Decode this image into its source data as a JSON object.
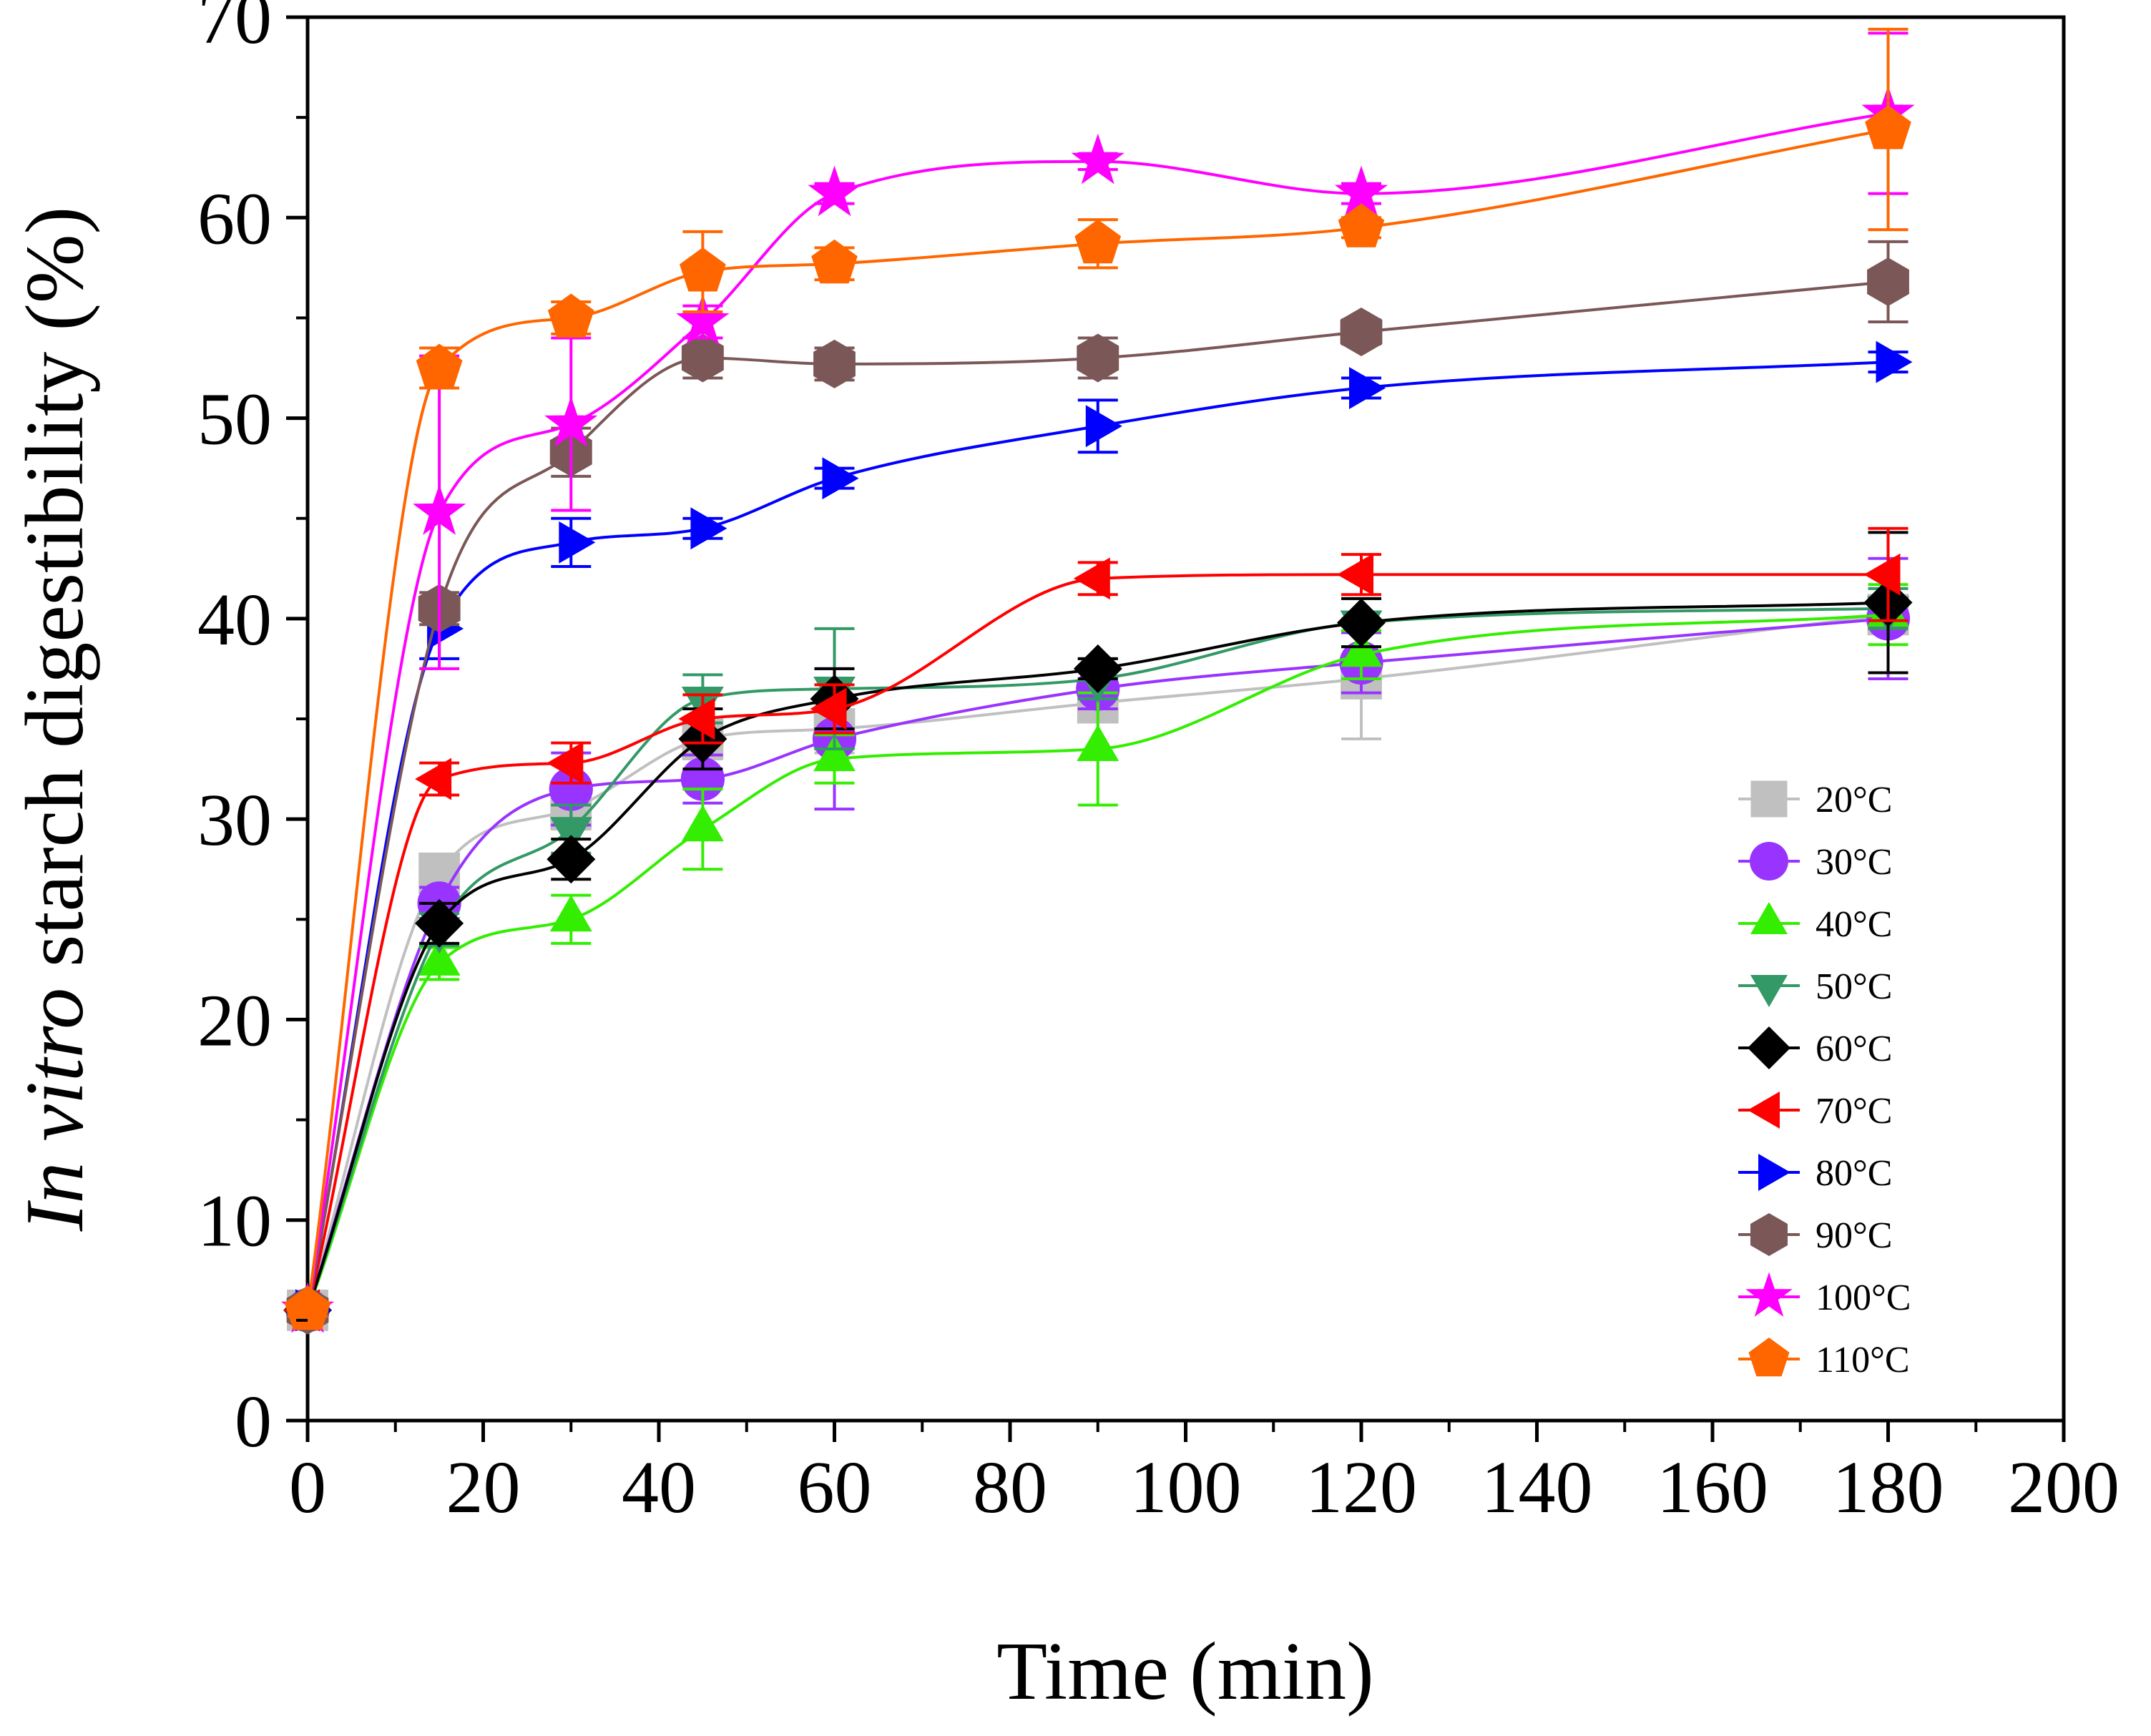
{
  "chart_data": {
    "type": "line",
    "xlabel": "Time (min)",
    "ylabel_italic": "In vitro",
    "ylabel_rest": " starch digestibility (%)",
    "xlim": [
      0,
      200
    ],
    "ylim": [
      0,
      70
    ],
    "xticks": [
      0,
      20,
      40,
      60,
      80,
      100,
      120,
      140,
      160,
      180,
      200
    ],
    "yticks": [
      0,
      10,
      20,
      30,
      40,
      50,
      60,
      70
    ],
    "grid": false,
    "legend_position": "bottom-right",
    "x": [
      0,
      15,
      30,
      45,
      60,
      90,
      120,
      180
    ],
    "series": [
      {
        "name": "20°C",
        "marker": "square",
        "color": "#c0c0c0",
        "values": [
          5.5,
          27.3,
          30.5,
          34.0,
          34.5,
          35.8,
          37.0,
          40.2
        ],
        "errors": [
          0.3,
          0.8,
          1.0,
          1.0,
          1.2,
          0.8,
          3.0,
          0.8
        ]
      },
      {
        "name": "30°C",
        "marker": "circle",
        "color": "#9933ff",
        "values": [
          5.5,
          25.8,
          31.5,
          32.0,
          34.0,
          36.5,
          37.8,
          40.0
        ],
        "errors": [
          0.3,
          0.8,
          1.8,
          1.2,
          3.5,
          1.0,
          1.5,
          3.0
        ]
      },
      {
        "name": "40°C",
        "marker": "triangle-up",
        "color": "#33ee00",
        "values": [
          5.5,
          22.8,
          25.0,
          29.5,
          33.0,
          33.5,
          38.2,
          40.2
        ],
        "errors": [
          0.3,
          0.8,
          1.2,
          2.0,
          1.2,
          2.8,
          1.2,
          1.5
        ]
      },
      {
        "name": "50°C",
        "marker": "triangle-down",
        "color": "#339966",
        "values": [
          5.5,
          24.5,
          29.5,
          36.0,
          36.5,
          37.0,
          39.8,
          40.5
        ],
        "errors": [
          0.3,
          0.8,
          1.2,
          1.2,
          3.0,
          1.0,
          1.2,
          1.0
        ]
      },
      {
        "name": "60°C",
        "marker": "diamond",
        "color": "#000000",
        "values": [
          5.5,
          24.8,
          28.0,
          34.0,
          36.0,
          37.5,
          39.8,
          40.8
        ],
        "errors": [
          0.3,
          1.0,
          1.0,
          1.5,
          1.5,
          0.5,
          1.2,
          3.5
        ]
      },
      {
        "name": "70°C",
        "marker": "triangle-left",
        "color": "#ff0000",
        "values": [
          5.5,
          32.0,
          32.8,
          35.0,
          35.5,
          42.0,
          42.2,
          42.2
        ],
        "errors": [
          0.3,
          0.8,
          1.0,
          1.2,
          1.2,
          0.8,
          1.0,
          2.3
        ]
      },
      {
        "name": "80°C",
        "marker": "triangle-right",
        "color": "#0000ff",
        "values": [
          5.5,
          39.5,
          43.8,
          44.5,
          47.0,
          49.6,
          51.5,
          52.8
        ],
        "errors": [
          0.3,
          1.5,
          1.2,
          0.5,
          0.5,
          1.3,
          0.5,
          0.5
        ]
      },
      {
        "name": "90°C",
        "marker": "hexagon",
        "color": "#7b5757",
        "values": [
          5.5,
          40.5,
          48.3,
          53.0,
          52.7,
          53.0,
          54.3,
          56.8
        ],
        "errors": [
          0.3,
          0.8,
          1.2,
          1.0,
          0.8,
          1.0,
          0.6,
          2.0
        ]
      },
      {
        "name": "100°C",
        "marker": "star",
        "color": "#ff00ff",
        "values": [
          5.5,
          45.3,
          49.7,
          54.8,
          61.2,
          62.8,
          61.2,
          65.2
        ],
        "errors": [
          0.3,
          7.8,
          4.3,
          0.8,
          0.5,
          0.4,
          0.5,
          4.0
        ]
      },
      {
        "name": "110°C",
        "marker": "pentagon",
        "color": "#ff6600",
        "values": [
          5.5,
          52.5,
          55.0,
          57.3,
          57.7,
          58.7,
          59.5,
          64.4
        ],
        "errors": [
          0.3,
          1.0,
          0.8,
          2.0,
          0.8,
          1.2,
          0.5,
          5.0
        ]
      }
    ]
  }
}
